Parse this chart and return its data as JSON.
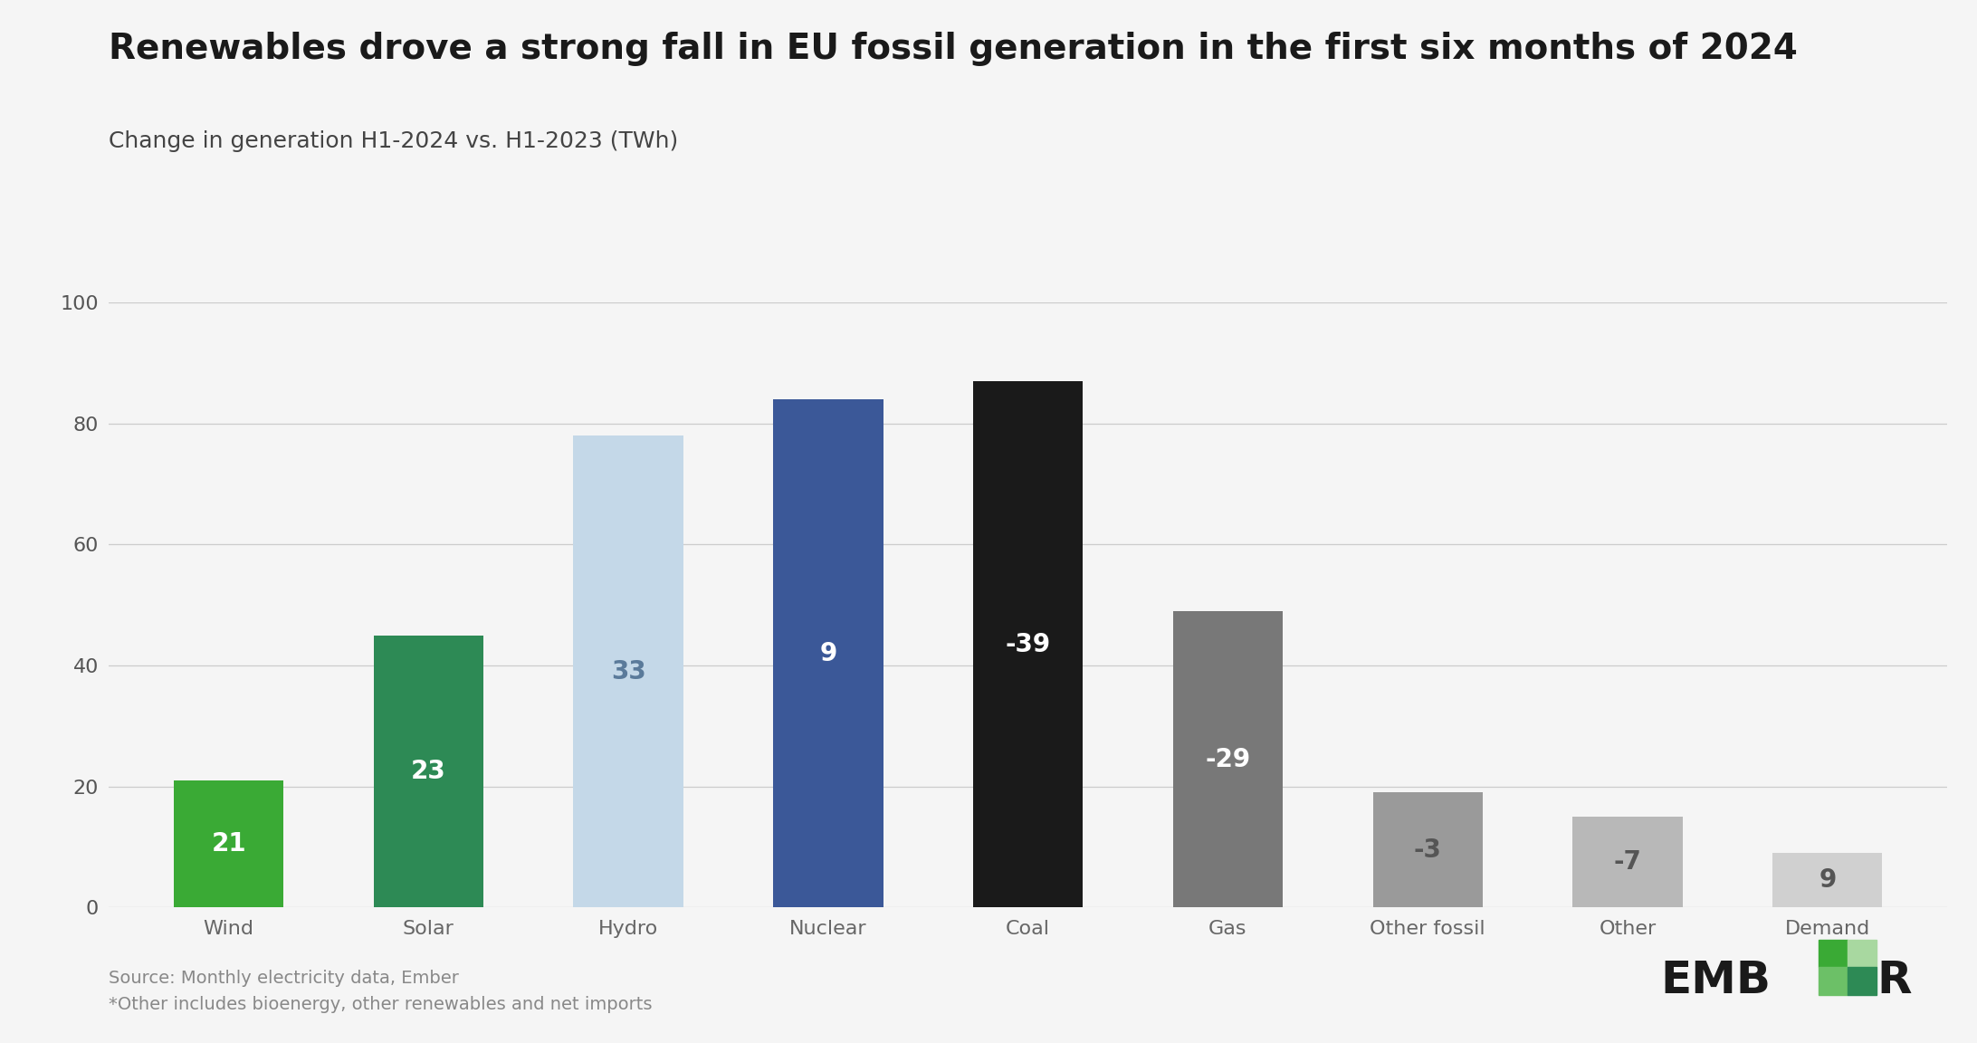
{
  "title": "Renewables drove a strong fall in EU fossil generation in the first six months of 2024",
  "subtitle": "Change in generation H1-2024 vs. H1-2023 (TWh)",
  "categories": [
    "Wind",
    "Solar",
    "Hydro",
    "Nuclear",
    "Coal",
    "Gas",
    "Other fossil",
    "Other",
    "Demand"
  ],
  "bar_heights": [
    21,
    45,
    78,
    84,
    87,
    49,
    19,
    15,
    9
  ],
  "label_values": [
    21,
    23,
    33,
    9,
    -39,
    -29,
    -3,
    -7,
    9
  ],
  "bar_colors": [
    "#3aaa35",
    "#2d8a55",
    "#c4d8e8",
    "#3b5898",
    "#1a1a1a",
    "#787878",
    "#9a9a9a",
    "#b8b8b8",
    "#d0d0d0"
  ],
  "label_colors": [
    "#ffffff",
    "#ffffff",
    "#5a7a9a",
    "#ffffff",
    "#ffffff",
    "#ffffff",
    "#555555",
    "#555555",
    "#555555"
  ],
  "ylim": [
    0,
    100
  ],
  "yticks": [
    0,
    20,
    40,
    60,
    80,
    100
  ],
  "background_color": "#f5f5f5",
  "title_fontsize": 28,
  "subtitle_fontsize": 18,
  "tick_fontsize": 16,
  "label_fontsize": 20,
  "source_text": "Source: Monthly electricity data, Ember",
  "note_text": "*Other includes bioenergy, other renewables and net imports",
  "footer_fontsize": 14,
  "bar_width": 0.55,
  "ember_colors": [
    "#3aaa35",
    "#6cc067",
    "#a8d8a0",
    "#2d8a55"
  ]
}
